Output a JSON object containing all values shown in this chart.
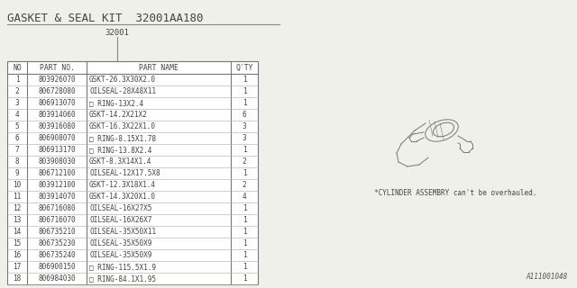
{
  "title": "GASKET & SEAL KIT  32001AA180",
  "subtitle": "32001",
  "bg_color": "#f0f0ea",
  "table_headers": [
    "NO",
    "PART NO.",
    "PART NAME",
    "Q'TY"
  ],
  "rows": [
    [
      "1",
      "803926070",
      "GSKT-26.3X30X2.0",
      "1"
    ],
    [
      "2",
      "806728080",
      "OILSEAL-28X48X11",
      "1"
    ],
    [
      "3",
      "806913070",
      "□ RING-13X2.4",
      "1"
    ],
    [
      "4",
      "803914060",
      "GSKT-14.2X21X2",
      "6"
    ],
    [
      "5",
      "803916080",
      "GSKT-16.3X22X1.0",
      "3"
    ],
    [
      "6",
      "806908070",
      "□ RING-8.15X1.78",
      "3"
    ],
    [
      "7",
      "806913170",
      "□ RING-13.8X2.4",
      "1"
    ],
    [
      "8",
      "803908030",
      "GSKT-8.3X14X1.4",
      "2"
    ],
    [
      "9",
      "806712100",
      "OILSEAL-12X17.5X8",
      "1"
    ],
    [
      "10",
      "803912100",
      "GSKT-12.3X18X1.4",
      "2"
    ],
    [
      "11",
      "803914070",
      "GSKT-14.3X20X1.0",
      "4"
    ],
    [
      "12",
      "806716080",
      "OILSEAL-16X27X5",
      "1"
    ],
    [
      "13",
      "806716070",
      "OILSEAL-16X26X7",
      "1"
    ],
    [
      "14",
      "806735210",
      "OILSEAL-35X50X11",
      "1"
    ],
    [
      "15",
      "806735230",
      "OILSEAL-35X50X9",
      "1"
    ],
    [
      "16",
      "806735240",
      "OILSEAL-35X50X9",
      "1"
    ],
    [
      "17",
      "806900150",
      "□ RING-115.5X1.9",
      "1"
    ],
    [
      "18",
      "806984030",
      "□ RING-84.1X1.95",
      "1"
    ]
  ],
  "note": "*CYLINDER ASSEMBRY can't be overhauled.",
  "ref_code": "A111001048",
  "font_size": 5.8,
  "title_font_size": 9.0,
  "subtitle_font_size": 6.5,
  "note_font_size": 5.5,
  "ref_font_size": 5.5
}
